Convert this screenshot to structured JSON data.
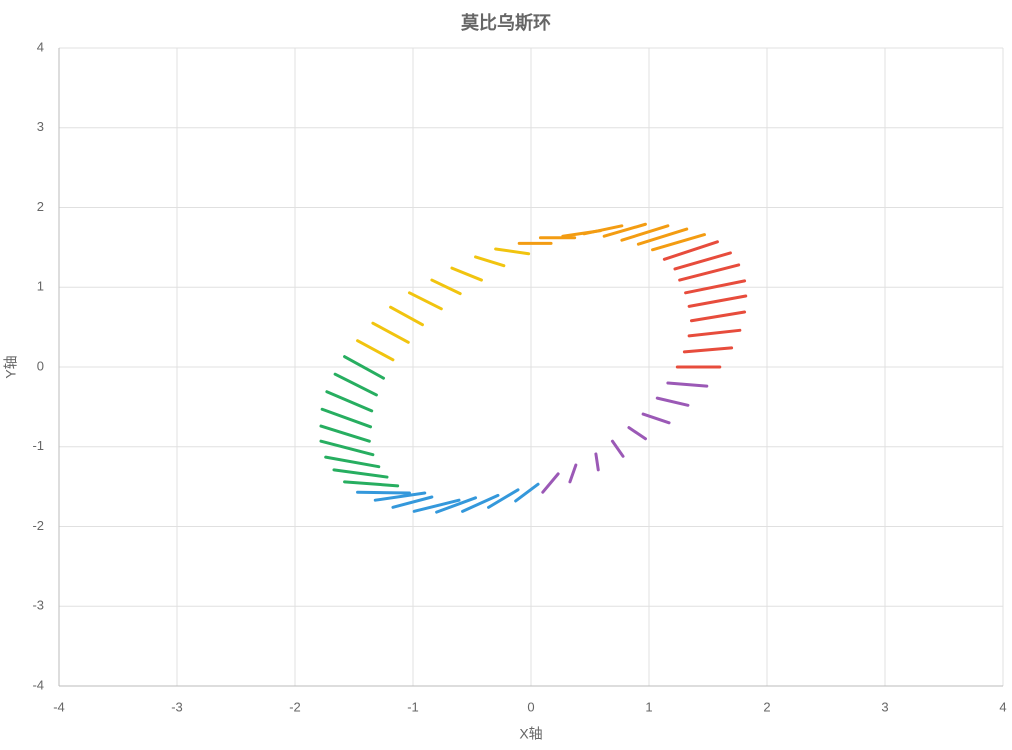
{
  "chart_data": {
    "type": "segments",
    "title": "莫比乌斯环",
    "x_label": "X轴",
    "y_label": "Y轴",
    "xlim": [
      -4,
      4
    ],
    "ylim": [
      -4,
      4
    ],
    "xticks": [
      -4,
      -3,
      -2,
      -1,
      0,
      1,
      2,
      3,
      4
    ],
    "yticks": [
      -4,
      -3,
      -2,
      -1,
      0,
      1,
      2,
      3,
      4
    ],
    "grid": true,
    "series": [
      {
        "color": "#e74c3c",
        "x": [
          [
            1.13,
            1.58
          ],
          [
            1.22,
            1.69
          ],
          [
            1.26,
            1.76
          ],
          [
            1.31,
            1.81
          ],
          [
            1.34,
            1.82
          ],
          [
            1.36,
            1.81
          ],
          [
            1.34,
            1.77
          ],
          [
            1.3,
            1.7
          ],
          [
            1.24,
            1.6
          ]
        ],
        "y": [
          [
            1.35,
            1.57
          ],
          [
            1.23,
            1.43
          ],
          [
            1.09,
            1.28
          ],
          [
            0.93,
            1.08
          ],
          [
            0.76,
            0.89
          ],
          [
            0.58,
            0.69
          ],
          [
            0.39,
            0.46
          ],
          [
            0.19,
            0.24
          ],
          [
            0,
            0
          ]
        ]
      },
      {
        "color": "#9b59b6",
        "x": [
          [
            1.16,
            1.49
          ],
          [
            1.07,
            1.33
          ],
          [
            0.95,
            1.17
          ],
          [
            0.83,
            0.97
          ],
          [
            0.69,
            0.78
          ],
          [
            0.55,
            0.57
          ],
          [
            0.38,
            0.33
          ],
          [
            0.23,
            0.1
          ]
        ],
        "y": [
          [
            -0.2,
            -0.24
          ],
          [
            -0.39,
            -0.48
          ],
          [
            -0.59,
            -0.7
          ],
          [
            -0.76,
            -0.9
          ],
          [
            -0.93,
            -1.12
          ],
          [
            -1.09,
            -1.29
          ],
          [
            -1.23,
            -1.44
          ],
          [
            -1.34,
            -1.57
          ]
        ]
      },
      {
        "color": "#3498db",
        "x": [
          [
            0.06,
            -0.13
          ],
          [
            -0.11,
            -0.36
          ],
          [
            -0.28,
            -0.58
          ],
          [
            -0.47,
            -0.8
          ],
          [
            -0.61,
            -0.99
          ],
          [
            -0.84,
            -1.17
          ],
          [
            -0.9,
            -1.32
          ],
          [
            -1.03,
            -1.47
          ]
        ],
        "y": [
          [
            -1.47,
            -1.68
          ],
          [
            -1.54,
            -1.76
          ],
          [
            -1.61,
            -1.81
          ],
          [
            -1.64,
            -1.82
          ],
          [
            -1.67,
            -1.81
          ],
          [
            -1.63,
            -1.76
          ],
          [
            -1.58,
            -1.67
          ],
          [
            -1.58,
            -1.57
          ]
        ]
      },
      {
        "color": "#27ae60",
        "x": [
          [
            -1.13,
            -1.58
          ],
          [
            -1.22,
            -1.67
          ],
          [
            -1.29,
            -1.74
          ],
          [
            -1.34,
            -1.78
          ],
          [
            -1.37,
            -1.78
          ],
          [
            -1.36,
            -1.77
          ],
          [
            -1.35,
            -1.73
          ],
          [
            -1.31,
            -1.66
          ],
          [
            -1.25,
            -1.58
          ]
        ],
        "y": [
          [
            -1.49,
            -1.44
          ],
          [
            -1.38,
            -1.29
          ],
          [
            -1.25,
            -1.13
          ],
          [
            -1.1,
            -0.93
          ],
          [
            -0.93,
            -0.74
          ],
          [
            -0.75,
            -0.53
          ],
          [
            -0.55,
            -0.31
          ],
          [
            -0.35,
            -0.09
          ],
          [
            -0.14,
            0.13
          ]
        ]
      },
      {
        "color": "#f1c40f",
        "x": [
          [
            -1.17,
            -1.47
          ],
          [
            -1.04,
            -1.34
          ],
          [
            -0.92,
            -1.19
          ],
          [
            -0.76,
            -1.03
          ],
          [
            -0.6,
            -0.84
          ],
          [
            -0.42,
            -0.67
          ],
          [
            -0.23,
            -0.47
          ],
          [
            -0.02,
            -0.3
          ]
        ],
        "y": [
          [
            0.09,
            0.33
          ],
          [
            0.31,
            0.55
          ],
          [
            0.53,
            0.75
          ],
          [
            0.73,
            0.93
          ],
          [
            0.92,
            1.09
          ],
          [
            1.09,
            1.24
          ],
          [
            1.27,
            1.38
          ],
          [
            1.42,
            1.48
          ]
        ]
      },
      {
        "color": "#f39c12",
        "x": [
          [
            0.17,
            -0.1
          ],
          [
            0.37,
            0.08
          ],
          [
            0.59,
            0.27
          ],
          [
            0.77,
            0.45
          ],
          [
            0.97,
            0.62
          ],
          [
            1.16,
            0.77
          ],
          [
            1.32,
            0.91
          ],
          [
            1.47,
            1.03
          ]
        ],
        "y": [
          [
            1.55,
            1.55
          ],
          [
            1.62,
            1.62
          ],
          [
            1.71,
            1.64
          ],
          [
            1.77,
            1.67
          ],
          [
            1.79,
            1.64
          ],
          [
            1.77,
            1.59
          ],
          [
            1.73,
            1.54
          ],
          [
            1.66,
            1.47
          ]
        ]
      }
    ]
  }
}
